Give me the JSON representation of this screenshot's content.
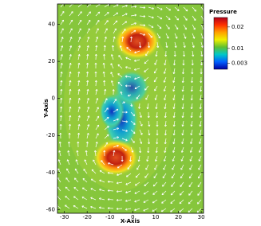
{
  "chart_data": {
    "type": "vector-field",
    "legend_title": "Pressure",
    "x_label": "X-Axis",
    "y_label": "Y-Axis",
    "xlim": [
      -33,
      31
    ],
    "ylim": [
      -62,
      51
    ],
    "xticks": [
      -30,
      -20,
      -10,
      0,
      10,
      20,
      30
    ],
    "yticks": [
      -60,
      -40,
      -20,
      0,
      20,
      40
    ],
    "colorbar_lim": [
      0.0003,
      0.0244
    ],
    "colorbar_ticks": [
      0.003,
      0.01,
      0.02
    ],
    "colormap": [
      "#b0001a",
      "#ff3000",
      "#ffa000",
      "#f0f000",
      "#60c030",
      "#00c8c8",
      "#0060ff",
      "#0000a0"
    ]
  }
}
